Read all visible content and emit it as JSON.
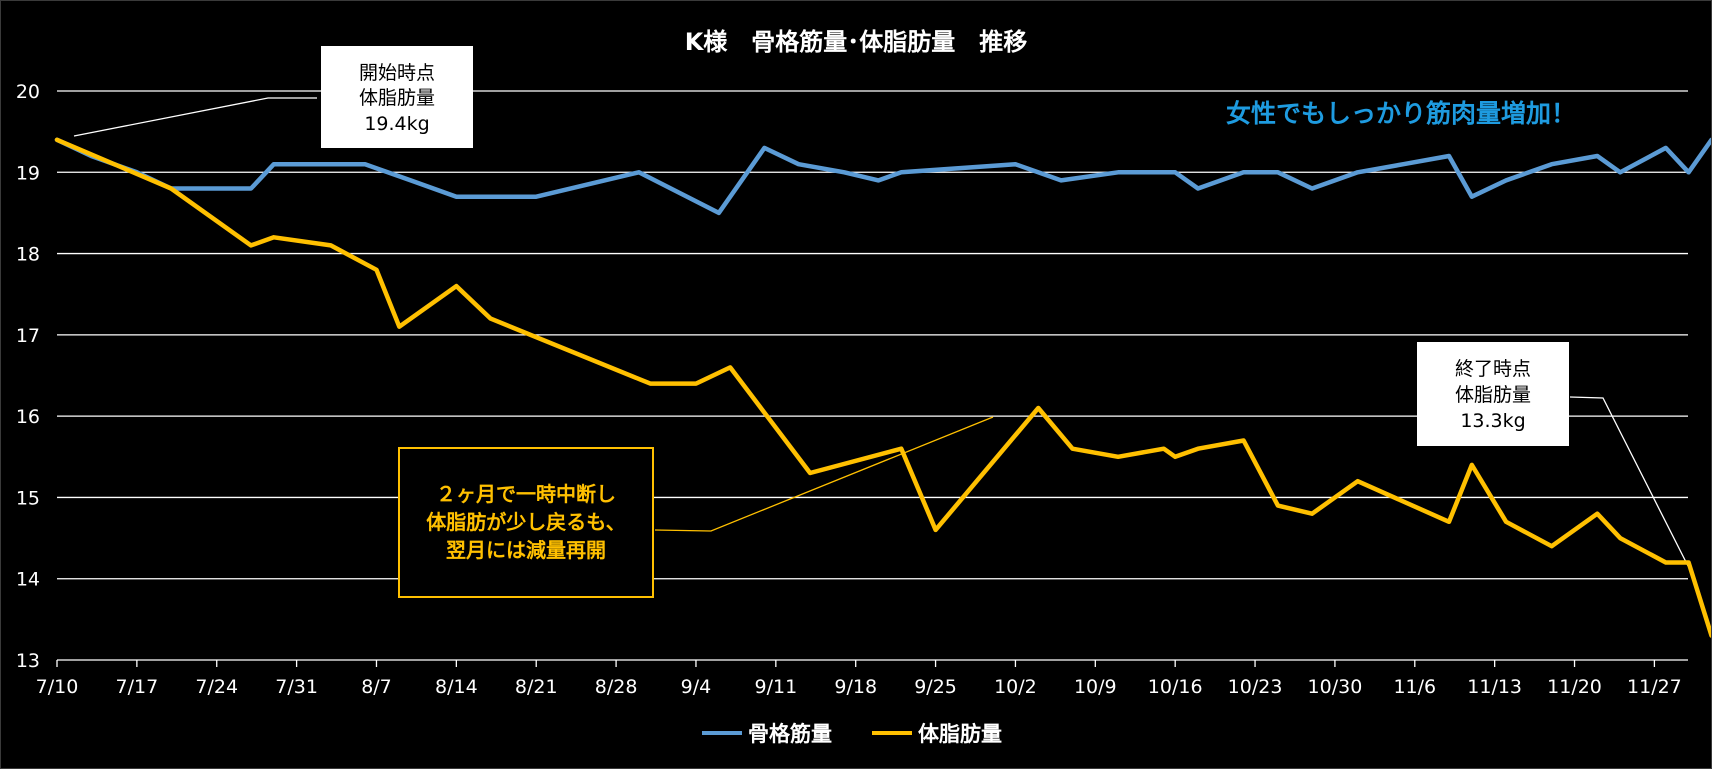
{
  "chart_data": {
    "type": "line",
    "title": "K様　骨格筋量･体脂肪量　推移",
    "xlabel": "",
    "ylabel": "",
    "ylim": [
      13,
      20
    ],
    "yticks": [
      13,
      14,
      15,
      16,
      17,
      18,
      19,
      20
    ],
    "grid": true,
    "legend_position": "bottom",
    "x_tick_labels": [
      "7/10",
      "7/17",
      "7/24",
      "7/31",
      "8/7",
      "8/14",
      "8/21",
      "8/28",
      "9/4",
      "9/11",
      "9/18",
      "9/25",
      "10/2",
      "10/9",
      "10/16",
      "10/23",
      "10/30",
      "11/6",
      "11/13",
      "11/20",
      "11/27"
    ],
    "series": [
      {
        "name": "骨格筋量",
        "color": "#5B9BD5",
        "points": [
          [
            "2019-07-10",
            19.4
          ],
          [
            "2019-07-13",
            19.2
          ],
          [
            "2019-07-17",
            19.0
          ],
          [
            "2019-07-20",
            18.8
          ],
          [
            "2019-07-24",
            18.8
          ],
          [
            "2019-07-27",
            18.8
          ],
          [
            "2019-07-29",
            19.1
          ],
          [
            "2019-08-02",
            19.1
          ],
          [
            "2019-08-06",
            19.1
          ],
          [
            "2019-08-10",
            18.9
          ],
          [
            "2019-08-14",
            18.7
          ],
          [
            "2019-08-21",
            18.7
          ],
          [
            "2019-08-30",
            19.0
          ],
          [
            "2019-09-06",
            18.5
          ],
          [
            "2019-09-10",
            19.3
          ],
          [
            "2019-09-13",
            19.1
          ],
          [
            "2019-09-17",
            19.0
          ],
          [
            "2019-09-20",
            18.9
          ],
          [
            "2019-09-22",
            19.0
          ],
          [
            "2019-10-02",
            19.1
          ],
          [
            "2019-10-06",
            18.9
          ],
          [
            "2019-10-11",
            19.0
          ],
          [
            "2019-10-16",
            19.0
          ],
          [
            "2019-10-18",
            18.8
          ],
          [
            "2019-10-22",
            19.0
          ],
          [
            "2019-10-25",
            19.0
          ],
          [
            "2019-10-28",
            18.8
          ],
          [
            "2019-11-01",
            19.0
          ],
          [
            "2019-11-05",
            19.1
          ],
          [
            "2019-11-09",
            19.2
          ],
          [
            "2019-11-11",
            18.7
          ],
          [
            "2019-11-14",
            18.9
          ],
          [
            "2019-11-18",
            19.1
          ],
          [
            "2019-11-22",
            19.2
          ],
          [
            "2019-11-24",
            19.0
          ],
          [
            "2019-11-28",
            19.3
          ],
          [
            "2019-11-30",
            19.0
          ],
          [
            "2019-12-02",
            19.4
          ]
        ]
      },
      {
        "name": "体脂肪量",
        "color": "#FFC000",
        "points": [
          [
            "2019-07-10",
            19.4
          ],
          [
            "2019-07-20",
            18.8
          ],
          [
            "2019-07-27",
            18.1
          ],
          [
            "2019-07-29",
            18.2
          ],
          [
            "2019-08-03",
            18.1
          ],
          [
            "2019-08-07",
            17.8
          ],
          [
            "2019-08-09",
            17.1
          ],
          [
            "2019-08-14",
            17.6
          ],
          [
            "2019-08-17",
            17.2
          ],
          [
            "2019-08-31",
            16.4
          ],
          [
            "2019-09-04",
            16.4
          ],
          [
            "2019-09-07",
            16.6
          ],
          [
            "2019-09-14",
            15.3
          ],
          [
            "2019-09-22",
            15.6
          ],
          [
            "2019-09-25",
            14.6
          ],
          [
            "2019-10-04",
            16.1
          ],
          [
            "2019-10-07",
            15.6
          ],
          [
            "2019-10-11",
            15.5
          ],
          [
            "2019-10-15",
            15.6
          ],
          [
            "2019-10-16",
            15.5
          ],
          [
            "2019-10-18",
            15.6
          ],
          [
            "2019-10-22",
            15.7
          ],
          [
            "2019-10-25",
            14.9
          ],
          [
            "2019-10-28",
            14.8
          ],
          [
            "2019-11-01",
            15.2
          ],
          [
            "2019-11-09",
            14.7
          ],
          [
            "2019-11-11",
            15.4
          ],
          [
            "2019-11-14",
            14.7
          ],
          [
            "2019-11-18",
            14.4
          ],
          [
            "2019-11-22",
            14.8
          ],
          [
            "2019-11-24",
            14.5
          ],
          [
            "2019-11-28",
            14.2
          ],
          [
            "2019-11-30",
            14.2
          ],
          [
            "2019-12-02",
            13.3
          ]
        ]
      }
    ],
    "annotations": {
      "start_box": [
        "開始時点",
        "体脂肪量",
        "19.4kg"
      ],
      "end_box": [
        "終了時点",
        "体脂肪量",
        "13.3kg"
      ],
      "note_box": [
        "２ヶ月で一時中断し",
        "体脂肪が少し戻るも、",
        "翌月には減量再開"
      ],
      "highlight": "女性でもしっかり筋肉量増加！"
    },
    "colors": {
      "background": "#000000",
      "grid": "#FFFFFF",
      "text": "#FFFFFF",
      "highlight": "#1E9BE0",
      "note_border": "#FFC000",
      "note_text": "#FFC000"
    }
  }
}
